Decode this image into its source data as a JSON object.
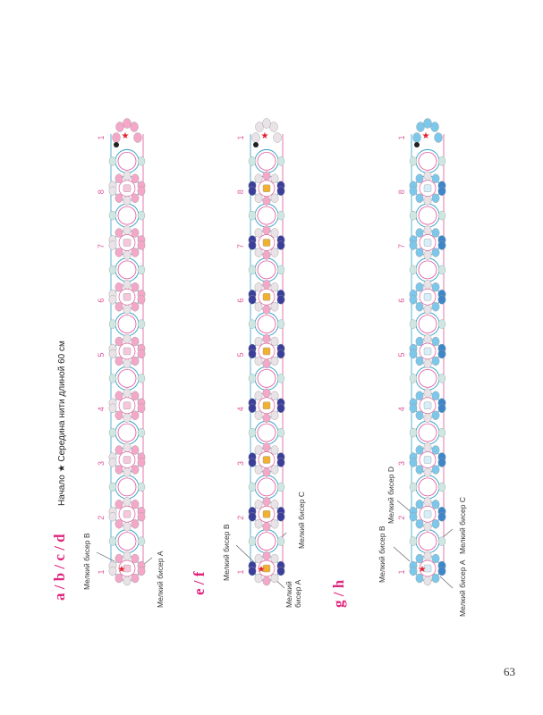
{
  "page_number": "63",
  "sections": [
    {
      "title": "a / b / c / d",
      "header_note": "Начало ★ Середина нити длиной 60 см",
      "label_top": "Мелкий бисер B",
      "label_bottom": "Мелкий бисер A",
      "units": [
        "1",
        "2",
        "3",
        "4",
        "5",
        "6",
        "7",
        "8",
        "1"
      ]
    },
    {
      "title": "e / f",
      "label_top": "Мелкий бисер B",
      "label_bottom_1": "Мелкий бисер A",
      "label_bottom_2": "Мелкий бисер C",
      "units": [
        "1",
        "2",
        "3",
        "4",
        "5",
        "6",
        "7",
        "8",
        "1"
      ]
    },
    {
      "title": "g / h",
      "label_top_1": "Мелкий бисер B",
      "label_top_2": "Мелкий бисер D",
      "label_bottom_1": "Мелкий бисер A",
      "label_bottom_2": "Мелкий бисер C",
      "units": [
        "1",
        "2",
        "3",
        "4",
        "5",
        "6",
        "7",
        "8",
        "1"
      ]
    }
  ],
  "colors": {
    "accent": "#e0267d",
    "thread_blue": "#2f9fc8",
    "thread_pink": "#e0559a",
    "bead_pink": "#f4a7c8",
    "bead_light": "#e9e2e6",
    "bead_mint": "#cfe6e3",
    "bead_navy": "#3c3f9a",
    "bead_gold": "#f1b030",
    "bead_sky": "#7cc7ea",
    "bead_sky_dark": "#3c86c9",
    "star": "#e0202a"
  }
}
